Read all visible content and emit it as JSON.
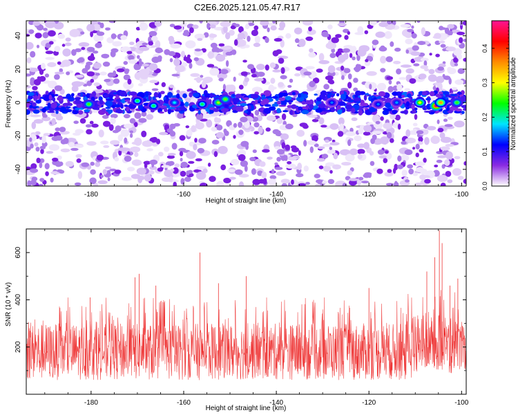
{
  "title": "C2E6.2025.121.05.47.R17",
  "chart_data": [
    {
      "type": "heatmap",
      "xlabel": "Height of straight line (km)",
      "ylabel": "Frequency (Hz)",
      "xlim": [
        -194,
        -99
      ],
      "ylim": [
        -50,
        49
      ],
      "xticks": [
        -180,
        -160,
        -140,
        -120,
        -100
      ],
      "yticks": [
        -40,
        -20,
        0,
        20,
        40
      ],
      "colorbar": {
        "label": "Normalized spectral amplitude",
        "range": [
          0,
          0.48
        ],
        "ticks": [
          "0.0",
          "0.1",
          "0.2",
          "0.3",
          "0.4"
        ],
        "tick_values": [
          0,
          0.1,
          0.2,
          0.3,
          0.4
        ],
        "colormap": [
          "#ffffff",
          "#8a2be2",
          "#0000ff",
          "#00e5ff",
          "#00ff00",
          "#ffff00",
          "#ff8c00",
          "#ff0000",
          "#ff1493"
        ]
      },
      "band_center_hz": 0,
      "band_halfwidth_hz": 6,
      "hotspots": [
        {
          "x": -180.5,
          "y": -1,
          "amplitude": 0.25
        },
        {
          "x": -170,
          "y": 1,
          "amplitude": 0.22
        },
        {
          "x": -166.5,
          "y": -2,
          "amplitude": 0.22
        },
        {
          "x": -162,
          "y": 0,
          "amplitude": 0.18
        },
        {
          "x": -156,
          "y": -1,
          "amplitude": 0.22
        },
        {
          "x": -152.5,
          "y": 0,
          "amplitude": 0.28
        },
        {
          "x": -151,
          "y": 2,
          "amplitude": 0.26
        },
        {
          "x": -128,
          "y": 0,
          "amplitude": 0.15
        },
        {
          "x": -118,
          "y": -1,
          "amplitude": 0.15
        },
        {
          "x": -114,
          "y": 0,
          "amplitude": 0.16
        },
        {
          "x": -109,
          "y": 0,
          "amplitude": 0.3
        },
        {
          "x": -105.5,
          "y": -2,
          "amplitude": 0.45
        },
        {
          "x": -104.5,
          "y": 0,
          "amplitude": 0.35
        },
        {
          "x": -101,
          "y": 0,
          "amplitude": 0.25
        }
      ]
    },
    {
      "type": "line",
      "xlabel": "Height of straight line (km)",
      "ylabel": "SNR (10 * v/v)",
      "xlim": [
        -194,
        -99
      ],
      "ylim": [
        0,
        700
      ],
      "xticks": [
        -180,
        -160,
        -140,
        -120,
        -100
      ],
      "yticks": [
        200,
        400,
        600
      ],
      "color": "#ee3333",
      "baseline_range": [
        60,
        300
      ],
      "peaks": [
        {
          "x": -180.2,
          "y": 410
        },
        {
          "x": -170.5,
          "y": 495
        },
        {
          "x": -169.6,
          "y": 510
        },
        {
          "x": -166,
          "y": 460
        },
        {
          "x": -156.5,
          "y": 600
        },
        {
          "x": -152.5,
          "y": 470
        },
        {
          "x": -146.5,
          "y": 500
        },
        {
          "x": -120,
          "y": 450
        },
        {
          "x": -107.5,
          "y": 520
        },
        {
          "x": -105.8,
          "y": 580
        },
        {
          "x": -104.8,
          "y": 695
        },
        {
          "x": -104.2,
          "y": 640
        },
        {
          "x": -102.5,
          "y": 460
        },
        {
          "x": -100.8,
          "y": 490
        }
      ]
    }
  ]
}
